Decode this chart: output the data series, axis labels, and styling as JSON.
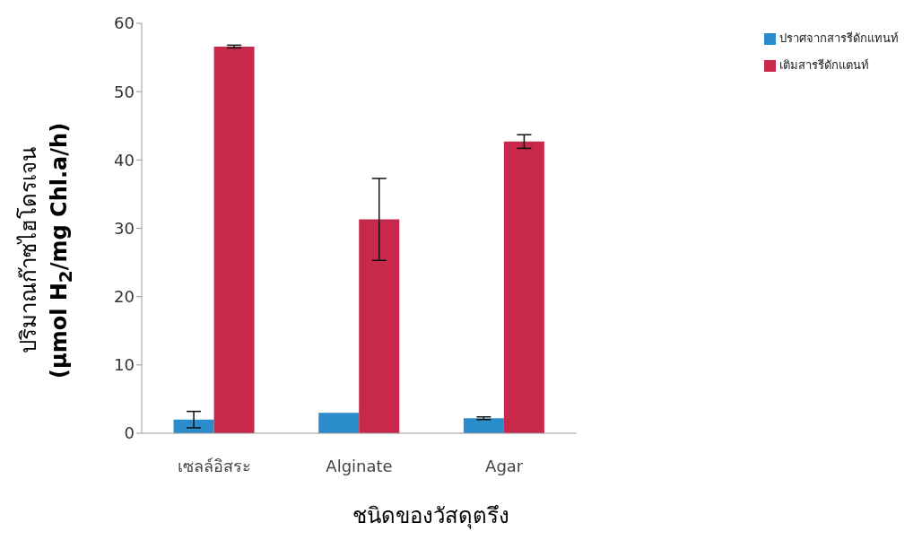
{
  "chart_data": {
    "type": "bar",
    "xlabel": "ชนิดของวัสดุตรึง",
    "ylabel": "ปริมาณก๊าซไฮโดรเจน\n(μmol H$_{2}$/mg Chl.a/h)",
    "categories": [
      "เซลล์อิสระ",
      "Alginate",
      "Agar"
    ],
    "series": [
      {
        "name": "ปราศจากสารรีดักแทนท์",
        "color": "#2a8ccb",
        "values": [
          2.0,
          3.0,
          2.2
        ],
        "errors": [
          1.2,
          null,
          0.2
        ]
      },
      {
        "name": "เติมสารรีดักแตนท์",
        "color": "#c8284a",
        "values": [
          56.6,
          31.3,
          42.7
        ],
        "errors": [
          0.2,
          6,
          1
        ]
      }
    ],
    "ylim": [
      0,
      60
    ],
    "yticks": [
      0,
      10,
      20,
      30,
      40,
      50,
      60
    ],
    "grid": false,
    "legend": "top right"
  }
}
